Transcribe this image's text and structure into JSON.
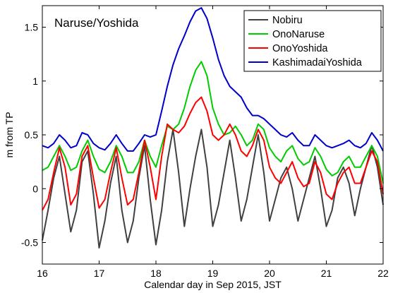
{
  "chart_data": {
    "type": "line",
    "title": "Naruse/Yoshida",
    "xlabel": "Calendar day in Sep 2015, JST",
    "ylabel": "m from TP",
    "xlim": [
      16,
      22
    ],
    "ylim": [
      -0.7,
      1.7
    ],
    "x_ticks": [
      "16",
      "17",
      "18",
      "19",
      "20",
      "21",
      "22"
    ],
    "y_ticks": [
      "-0.5",
      "0",
      "0.5",
      "1",
      "1.5"
    ],
    "y_tick_values": [
      -0.5,
      0,
      0.5,
      1,
      1.5
    ],
    "legend_position": "top-right",
    "grid": false,
    "series": [
      {
        "name": "Nobiru",
        "color": "#404040",
        "x": [
          16.0,
          16.1,
          16.2,
          16.3,
          16.4,
          16.5,
          16.6,
          16.7,
          16.8,
          16.9,
          17.0,
          17.1,
          17.2,
          17.3,
          17.4,
          17.5,
          17.6,
          17.7,
          17.8,
          17.9,
          18.0,
          18.1,
          18.2,
          18.3,
          18.4,
          18.5,
          18.6,
          18.7,
          18.8,
          18.9,
          19.0,
          19.1,
          19.2,
          19.3,
          19.4,
          19.5,
          19.6,
          19.7,
          19.8,
          19.9,
          20.0,
          20.1,
          20.2,
          20.3,
          20.4,
          20.5,
          20.6,
          20.7,
          20.8,
          20.9,
          21.0,
          21.1,
          21.2,
          21.3,
          21.4,
          21.5,
          21.6,
          21.7,
          21.8,
          21.9,
          22.0
        ],
        "y": [
          -0.48,
          -0.2,
          0.1,
          0.3,
          -0.05,
          -0.4,
          -0.2,
          0.25,
          0.35,
          -0.05,
          -0.55,
          -0.3,
          0.05,
          0.3,
          -0.2,
          -0.5,
          -0.3,
          0.1,
          0.4,
          -0.1,
          -0.52,
          -0.2,
          0.25,
          0.55,
          0.15,
          -0.35,
          0.0,
          0.3,
          0.55,
          0.2,
          -0.35,
          -0.15,
          0.15,
          0.45,
          0.1,
          -0.3,
          -0.1,
          0.2,
          0.5,
          0.15,
          -0.3,
          -0.1,
          0.1,
          0.2,
          0.0,
          -0.3,
          -0.1,
          0.1,
          0.3,
          0.0,
          -0.35,
          -0.2,
          0.1,
          0.2,
          0.05,
          -0.25,
          0.0,
          0.2,
          0.4,
          0.2,
          -0.15
        ]
      },
      {
        "name": "OnoNaruse",
        "color": "#00cc00",
        "x": [
          16.0,
          16.1,
          16.2,
          16.3,
          16.4,
          16.5,
          16.6,
          16.7,
          16.8,
          16.9,
          17.0,
          17.1,
          17.2,
          17.3,
          17.4,
          17.5,
          17.6,
          17.7,
          17.8,
          17.9,
          18.0,
          18.1,
          18.2,
          18.3,
          18.4,
          18.5,
          18.6,
          18.7,
          18.8,
          18.9,
          19.0,
          19.1,
          19.2,
          19.3,
          19.4,
          19.5,
          19.6,
          19.7,
          19.8,
          19.9,
          20.0,
          20.1,
          20.2,
          20.3,
          20.4,
          20.5,
          20.6,
          20.7,
          20.8,
          20.9,
          21.0,
          21.1,
          21.2,
          21.3,
          21.4,
          21.5,
          21.6,
          21.7,
          21.8,
          21.9,
          22.0
        ],
        "y": [
          0.17,
          0.2,
          0.3,
          0.4,
          0.3,
          0.17,
          0.2,
          0.35,
          0.45,
          0.3,
          0.18,
          0.15,
          0.25,
          0.4,
          0.3,
          0.15,
          0.15,
          0.25,
          0.45,
          0.3,
          0.2,
          0.4,
          0.58,
          0.55,
          0.6,
          0.75,
          0.95,
          1.1,
          1.18,
          1.05,
          0.75,
          0.6,
          0.5,
          0.52,
          0.58,
          0.5,
          0.4,
          0.45,
          0.6,
          0.55,
          0.38,
          0.3,
          0.25,
          0.35,
          0.4,
          0.28,
          0.22,
          0.25,
          0.38,
          0.3,
          0.18,
          0.12,
          0.15,
          0.25,
          0.3,
          0.2,
          0.2,
          0.3,
          0.4,
          0.3,
          0.05
        ]
      },
      {
        "name": "OnoYoshida",
        "color": "#ff0000",
        "x": [
          16.0,
          16.1,
          16.2,
          16.3,
          16.4,
          16.5,
          16.6,
          16.7,
          16.8,
          16.9,
          17.0,
          17.1,
          17.2,
          17.3,
          17.4,
          17.5,
          17.6,
          17.7,
          17.8,
          17.9,
          18.0,
          18.1,
          18.2,
          18.3,
          18.4,
          18.5,
          18.6,
          18.7,
          18.8,
          18.9,
          19.0,
          19.1,
          19.2,
          19.3,
          19.4,
          19.5,
          19.6,
          19.7,
          19.8,
          19.9,
          20.0,
          20.1,
          20.2,
          20.3,
          20.4,
          20.5,
          20.6,
          20.7,
          20.8,
          20.9,
          21.0,
          21.1,
          21.2,
          21.3,
          21.4,
          21.5,
          21.6,
          21.7,
          21.8,
          21.9,
          22.0
        ],
        "y": [
          -0.2,
          -0.1,
          0.15,
          0.38,
          0.2,
          -0.15,
          -0.05,
          0.3,
          0.4,
          0.1,
          -0.18,
          -0.1,
          0.15,
          0.38,
          0.1,
          -0.15,
          -0.1,
          0.15,
          0.45,
          0.2,
          -0.1,
          0.3,
          0.6,
          0.55,
          0.52,
          0.58,
          0.7,
          0.8,
          0.85,
          0.72,
          0.5,
          0.45,
          0.5,
          0.6,
          0.5,
          0.35,
          0.3,
          0.4,
          0.55,
          0.45,
          0.2,
          0.1,
          0.05,
          0.15,
          0.25,
          0.1,
          0.02,
          0.05,
          0.25,
          0.15,
          -0.05,
          -0.1,
          0.05,
          0.15,
          0.2,
          0.05,
          0.05,
          0.2,
          0.35,
          0.25,
          -0.05
        ]
      },
      {
        "name": "KashimadaiYoshida",
        "color": "#0000cc",
        "x": [
          16.0,
          16.1,
          16.2,
          16.3,
          16.4,
          16.5,
          16.6,
          16.7,
          16.8,
          16.9,
          17.0,
          17.1,
          17.2,
          17.3,
          17.4,
          17.5,
          17.6,
          17.7,
          17.8,
          17.9,
          18.0,
          18.1,
          18.2,
          18.3,
          18.4,
          18.5,
          18.6,
          18.7,
          18.8,
          18.9,
          19.0,
          19.1,
          19.2,
          19.3,
          19.4,
          19.5,
          19.6,
          19.7,
          19.8,
          19.9,
          20.0,
          20.1,
          20.2,
          20.3,
          20.4,
          20.5,
          20.6,
          20.7,
          20.8,
          20.9,
          21.0,
          21.1,
          21.2,
          21.3,
          21.4,
          21.5,
          21.6,
          21.7,
          21.8,
          21.9,
          22.0
        ],
        "y": [
          0.4,
          0.38,
          0.42,
          0.5,
          0.45,
          0.38,
          0.4,
          0.52,
          0.5,
          0.42,
          0.38,
          0.36,
          0.42,
          0.5,
          0.42,
          0.35,
          0.35,
          0.42,
          0.5,
          0.48,
          0.5,
          0.72,
          0.95,
          1.15,
          1.3,
          1.42,
          1.55,
          1.65,
          1.68,
          1.58,
          1.4,
          1.2,
          1.05,
          0.95,
          0.9,
          0.85,
          0.75,
          0.68,
          0.68,
          0.65,
          0.6,
          0.55,
          0.5,
          0.48,
          0.52,
          0.45,
          0.4,
          0.4,
          0.5,
          0.45,
          0.4,
          0.38,
          0.4,
          0.42,
          0.45,
          0.4,
          0.38,
          0.42,
          0.52,
          0.45,
          0.35
        ]
      }
    ]
  }
}
